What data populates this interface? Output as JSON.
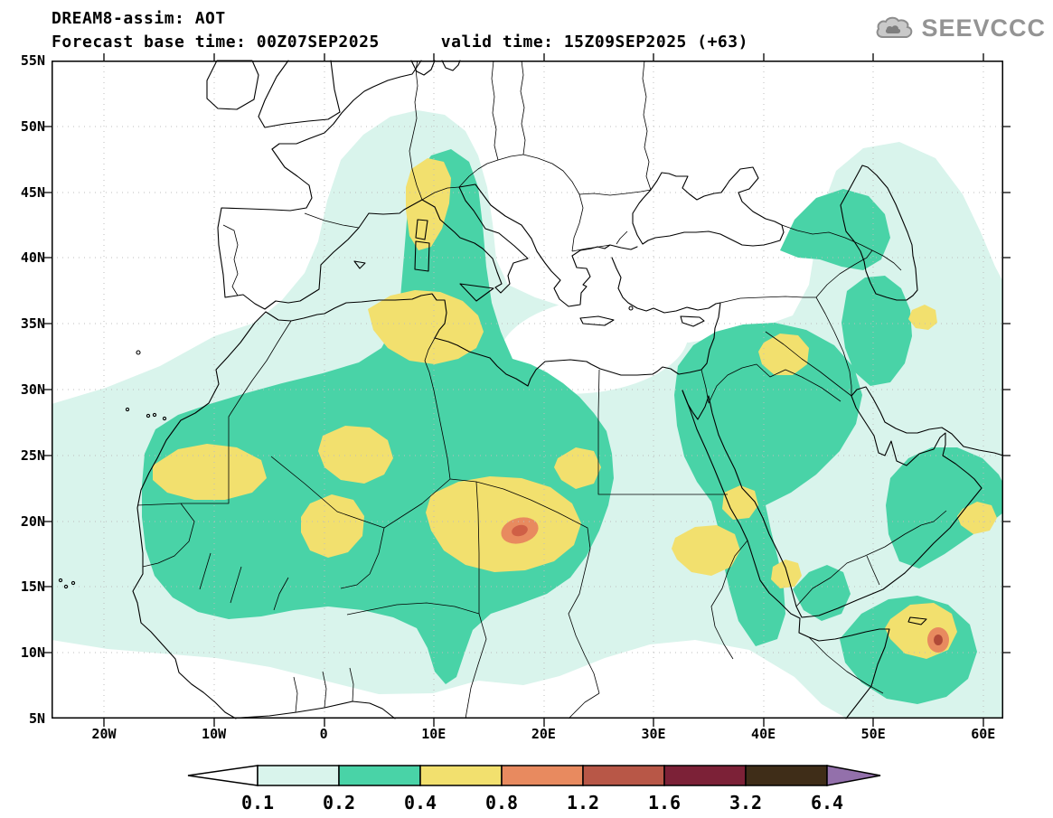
{
  "header": {
    "title": "DREAM8-assim: AOT",
    "subtitle": "Forecast base time: 00Z07SEP2025      valid time: 15Z09SEP2025 (+63)"
  },
  "logo": {
    "text": "SEEVCCC",
    "icon": "cloud-icon",
    "color": "#949494"
  },
  "axes": {
    "lat_labels": [
      "55N",
      "50N",
      "45N",
      "40N",
      "35N",
      "30N",
      "25N",
      "20N",
      "15N",
      "10N",
      "5N"
    ],
    "lon_labels": [
      "20W",
      "10W",
      "0",
      "10E",
      "20E",
      "30E",
      "40E",
      "50E",
      "60E"
    ]
  },
  "colorbar": {
    "values": [
      "0.1",
      "0.2",
      "0.4",
      "0.8",
      "1.2",
      "1.6",
      "3.2",
      "6.4"
    ],
    "left_arrow_color": "#ffffff",
    "segment_colors": [
      "#d9f4ec",
      "#49d3a7",
      "#f2e06e",
      "#e88a5f",
      "#b85747",
      "#7c2137",
      "#3f2d18"
    ],
    "right_arrow_color": "#9370ab"
  },
  "map_legend": {
    "quantity": "AOT",
    "levels": [
      0.1,
      0.2,
      0.4,
      0.8,
      1.2,
      1.6,
      3.2,
      6.4
    ],
    "fill_colors": {
      "0.1-0.2": "#d9f4ec",
      "0.2-0.4": "#49d3a7",
      "0.4-0.8": "#f2e06e",
      "0.8-1.2": "#e88a5f",
      "1.2-1.6": "#b85747",
      "1.6-3.2": "#7c2137",
      "3.2-6.4": "#3f2d18",
      ">6.4": "#9370ab"
    }
  }
}
